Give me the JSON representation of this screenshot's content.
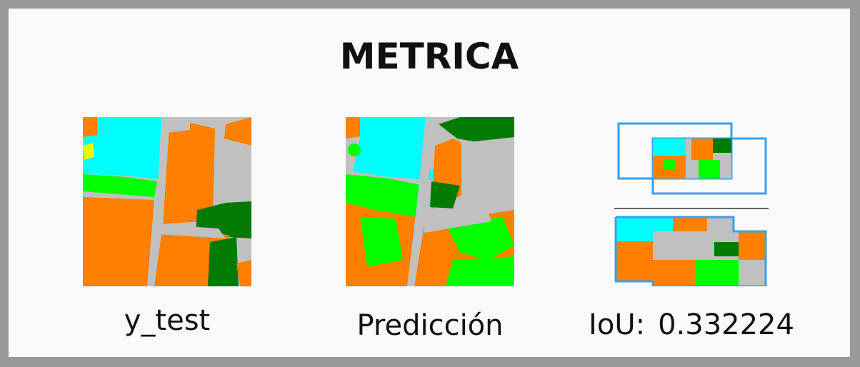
{
  "title": "METRICA",
  "captions": {
    "ytest": "y_test",
    "prediction": "Predicción",
    "iou_label": "IoU:",
    "iou_value": "0.332224"
  },
  "colors": {
    "background_frame": "#9a9a9a",
    "panel": "#fafafa",
    "orange": "#ff8000",
    "cyan": "#00ffff",
    "light_green": "#00ff00",
    "dark_green": "#007a00",
    "gray": "#c0c0c0",
    "yellow": "#e6ff00",
    "box_blue": "#3aa0e8"
  }
}
